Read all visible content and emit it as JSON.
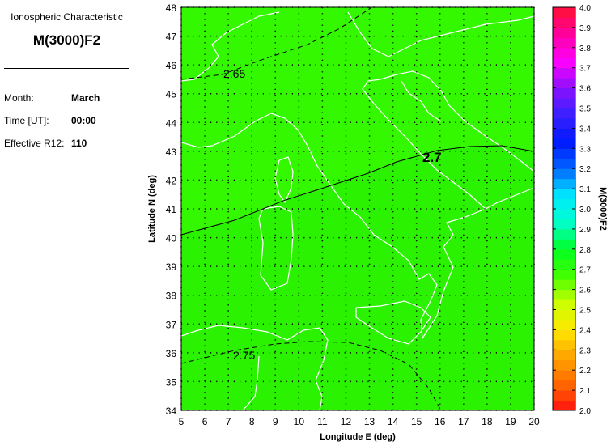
{
  "info_panel": {
    "title": "Ionospheric Characteristic",
    "characteristic": "M(3000)F2",
    "fields": [
      {
        "label": "Month:",
        "value": "March"
      },
      {
        "label": "Time [UT]:",
        "value": "00:00"
      },
      {
        "label": "Effective R12:",
        "value": "110"
      }
    ]
  },
  "map": {
    "xlabel": "Longitude E (deg)",
    "ylabel": "Latitude N (deg)",
    "x_ticks": [
      "5",
      "6",
      "7",
      "8",
      "9",
      "10",
      "11",
      "12",
      "13",
      "14",
      "15",
      "16",
      "17",
      "18",
      "19",
      "20"
    ],
    "y_ticks": [
      "48",
      "47",
      "46",
      "45",
      "44",
      "43",
      "42",
      "41",
      "40",
      "39",
      "38",
      "37",
      "36",
      "35",
      "34"
    ],
    "lon_range": [
      5,
      20
    ],
    "lat_range": [
      34,
      48
    ],
    "fill_color": "#2af200",
    "coastline_color": "#ffffff",
    "grid": "dotted",
    "contours": [
      {
        "label": "2.65",
        "style": "dashed"
      },
      {
        "label": "2.7",
        "style": "solid"
      },
      {
        "label": "2.75",
        "style": "dashed"
      }
    ]
  },
  "colorbar": {
    "title": "M(3000)F2",
    "ticks": [
      "4.0",
      "3.9",
      "3.8",
      "3.7",
      "3.6",
      "3.5",
      "3.4",
      "3.3",
      "3.2",
      "3.1",
      "3.0",
      "2.9",
      "2.8",
      "2.7",
      "2.6",
      "2.5",
      "2.4",
      "2.3",
      "2.2",
      "2.1",
      "2.0"
    ],
    "range": [
      2.0,
      4.0
    ],
    "colors": [
      "#ff1010",
      "#ff6a00",
      "#ffa500",
      "#ffe800",
      "#ccff00",
      "#44ff00",
      "#00ff22",
      "#00ffcc",
      "#00e8ff",
      "#0066ff",
      "#0018ff",
      "#3a20ff",
      "#8a10ff",
      "#ff00ff",
      "#ff00a0",
      "#ff1030"
    ]
  }
}
